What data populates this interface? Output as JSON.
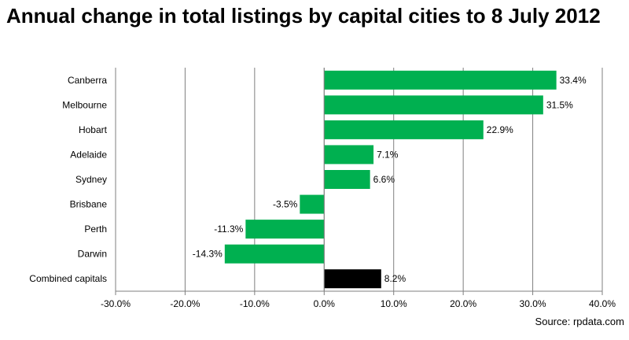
{
  "chart_data": {
    "type": "bar",
    "orientation": "horizontal",
    "title": "Annual change in total listings by capital cities to 8 July 2012",
    "categories": [
      "Canberra",
      "Melbourne",
      "Hobart",
      "Adelaide",
      "Sydney",
      "Brisbane",
      "Perth",
      "Darwin",
      "Combined capitals"
    ],
    "values": [
      33.4,
      31.5,
      22.9,
      7.1,
      6.6,
      -3.5,
      -11.3,
      -14.3,
      8.2
    ],
    "value_labels": [
      "33.4%",
      "31.5%",
      "22.9%",
      "7.1%",
      "6.6%",
      "-3.5%",
      "-11.3%",
      "-14.3%",
      "8.2%"
    ],
    "bar_colors": [
      "#00b050",
      "#00b050",
      "#00b050",
      "#00b050",
      "#00b050",
      "#00b050",
      "#00b050",
      "#00b050",
      "#000000"
    ],
    "xlim": [
      -30,
      40
    ],
    "x_ticks": [
      -30,
      -20,
      -10,
      0,
      10,
      20,
      30,
      40
    ],
    "x_tick_labels": [
      "-30.0%",
      "-20.0%",
      "-10.0%",
      "0.0%",
      "10.0%",
      "20.0%",
      "30.0%",
      "40.0%"
    ],
    "grid": true,
    "source": "Source: rpdata.com"
  }
}
